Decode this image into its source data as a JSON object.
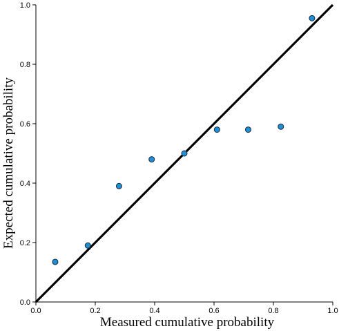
{
  "chart_data": {
    "type": "scatter",
    "xlabel": "Measured cumulative probability",
    "ylabel": "Expected cumulative probability",
    "xlim": [
      0.0,
      1.0
    ],
    "ylim": [
      0.0,
      1.0
    ],
    "x_ticks": [
      "0.0",
      "0.2",
      "0.4",
      "0.6",
      "0.8",
      "1.0"
    ],
    "y_ticks": [
      "0.0",
      "0.2",
      "0.4",
      "0.6",
      "0.8",
      "1.0"
    ],
    "grid": false,
    "reference_line": {
      "from": [
        0.0,
        0.0
      ],
      "to": [
        1.0,
        1.0
      ],
      "color": "#000000"
    },
    "points": [
      {
        "x": 0.065,
        "y": 0.135
      },
      {
        "x": 0.175,
        "y": 0.19
      },
      {
        "x": 0.28,
        "y": 0.39
      },
      {
        "x": 0.39,
        "y": 0.48
      },
      {
        "x": 0.5,
        "y": 0.5
      },
      {
        "x": 0.61,
        "y": 0.58
      },
      {
        "x": 0.715,
        "y": 0.58
      },
      {
        "x": 0.825,
        "y": 0.59
      },
      {
        "x": 0.93,
        "y": 0.955
      }
    ],
    "point_color": "#1f8fd6",
    "point_stroke": "#1a2a3a"
  }
}
